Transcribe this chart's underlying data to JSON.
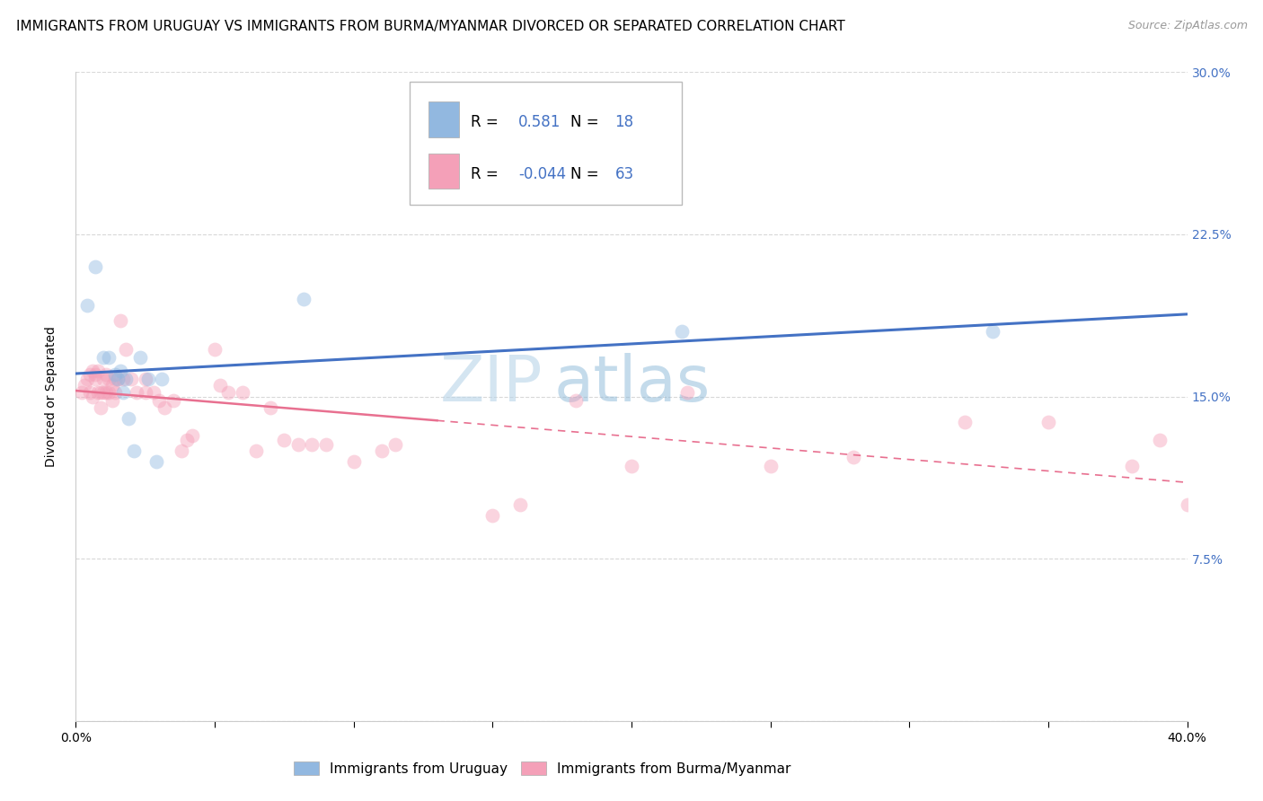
{
  "title": "IMMIGRANTS FROM URUGUAY VS IMMIGRANTS FROM BURMA/MYANMAR DIVORCED OR SEPARATED CORRELATION CHART",
  "source": "Source: ZipAtlas.com",
  "ylabel": "Divorced or Separated",
  "xlim": [
    0.0,
    0.4
  ],
  "ylim": [
    0.0,
    0.3
  ],
  "yticks": [
    0.0,
    0.075,
    0.15,
    0.225,
    0.3
  ],
  "ytick_labels": [
    "",
    "7.5%",
    "15.0%",
    "22.5%",
    "30.0%"
  ],
  "legend_R1": "0.581",
  "legend_N1": "18",
  "legend_R2": "-0.044",
  "legend_N2": "63",
  "series1_color": "#92b8e0",
  "series2_color": "#f4a0b8",
  "line1_color": "#4472c4",
  "line2_color": "#e87090",
  "watermark_color": "#c8dff0",
  "watermark_zip": "ZIP",
  "watermark_atlas": "atlas",
  "label1": "Immigrants from Uruguay",
  "label2": "Immigrants from Burma/Myanmar",
  "background_color": "#ffffff",
  "grid_color": "#d8d8d8",
  "title_fontsize": 11,
  "source_fontsize": 9,
  "axis_label_fontsize": 10,
  "tick_fontsize": 10,
  "legend_fontsize": 12,
  "marker_size": 130,
  "marker_alpha": 0.45,
  "uruguay_points": [
    [
      0.004,
      0.192
    ],
    [
      0.007,
      0.21
    ],
    [
      0.01,
      0.168
    ],
    [
      0.012,
      0.168
    ],
    [
      0.014,
      0.16
    ],
    [
      0.015,
      0.158
    ],
    [
      0.016,
      0.162
    ],
    [
      0.017,
      0.152
    ],
    [
      0.018,
      0.158
    ],
    [
      0.019,
      0.14
    ],
    [
      0.021,
      0.125
    ],
    [
      0.023,
      0.168
    ],
    [
      0.026,
      0.158
    ],
    [
      0.029,
      0.12
    ],
    [
      0.031,
      0.158
    ],
    [
      0.082,
      0.195
    ],
    [
      0.218,
      0.18
    ],
    [
      0.33,
      0.18
    ]
  ],
  "burma_points": [
    [
      0.002,
      0.152
    ],
    [
      0.003,
      0.155
    ],
    [
      0.004,
      0.158
    ],
    [
      0.005,
      0.16
    ],
    [
      0.005,
      0.152
    ],
    [
      0.006,
      0.162
    ],
    [
      0.006,
      0.15
    ],
    [
      0.007,
      0.158
    ],
    [
      0.007,
      0.16
    ],
    [
      0.008,
      0.152
    ],
    [
      0.008,
      0.162
    ],
    [
      0.009,
      0.152
    ],
    [
      0.009,
      0.145
    ],
    [
      0.01,
      0.158
    ],
    [
      0.01,
      0.152
    ],
    [
      0.011,
      0.16
    ],
    [
      0.011,
      0.152
    ],
    [
      0.012,
      0.158
    ],
    [
      0.012,
      0.152
    ],
    [
      0.013,
      0.155
    ],
    [
      0.013,
      0.148
    ],
    [
      0.014,
      0.158
    ],
    [
      0.014,
      0.152
    ],
    [
      0.015,
      0.158
    ],
    [
      0.016,
      0.185
    ],
    [
      0.017,
      0.158
    ],
    [
      0.018,
      0.172
    ],
    [
      0.02,
      0.158
    ],
    [
      0.022,
      0.152
    ],
    [
      0.025,
      0.158
    ],
    [
      0.025,
      0.152
    ],
    [
      0.028,
      0.152
    ],
    [
      0.03,
      0.148
    ],
    [
      0.032,
      0.145
    ],
    [
      0.035,
      0.148
    ],
    [
      0.038,
      0.125
    ],
    [
      0.04,
      0.13
    ],
    [
      0.042,
      0.132
    ],
    [
      0.05,
      0.172
    ],
    [
      0.052,
      0.155
    ],
    [
      0.055,
      0.152
    ],
    [
      0.06,
      0.152
    ],
    [
      0.065,
      0.125
    ],
    [
      0.07,
      0.145
    ],
    [
      0.075,
      0.13
    ],
    [
      0.08,
      0.128
    ],
    [
      0.085,
      0.128
    ],
    [
      0.09,
      0.128
    ],
    [
      0.1,
      0.12
    ],
    [
      0.11,
      0.125
    ],
    [
      0.115,
      0.128
    ],
    [
      0.15,
      0.095
    ],
    [
      0.16,
      0.1
    ],
    [
      0.18,
      0.148
    ],
    [
      0.2,
      0.118
    ],
    [
      0.22,
      0.152
    ],
    [
      0.25,
      0.118
    ],
    [
      0.28,
      0.122
    ],
    [
      0.32,
      0.138
    ],
    [
      0.35,
      0.138
    ],
    [
      0.38,
      0.118
    ],
    [
      0.39,
      0.13
    ],
    [
      0.4,
      0.1
    ]
  ]
}
